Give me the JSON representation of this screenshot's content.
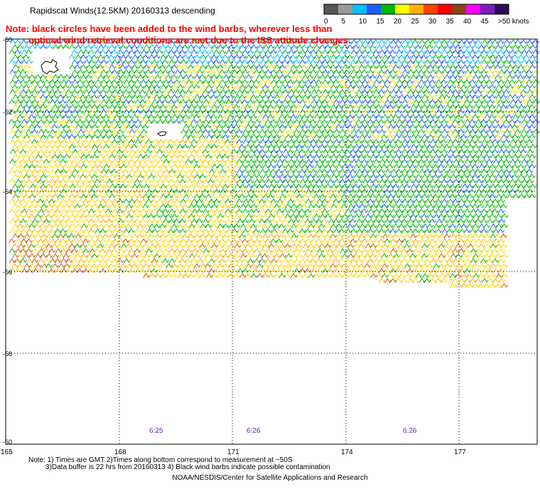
{
  "header": {
    "title": "Rapidscat Winds(12.5KM) 20160313 descending",
    "note_line1": "Note: black circles have been added to the wind barbs, wherever less than",
    "note_line2": "optimal wind retrieval conditions are met due to the ISS attitude changes."
  },
  "legend": {
    "labels": [
      "0",
      "5",
      "10",
      "15",
      "20",
      "25",
      "30",
      "35",
      "40",
      "45",
      ">50 knots"
    ],
    "colors": [
      "#555555",
      "#9a9a9a",
      "#00bfff",
      "#1e5cff",
      "#00b800",
      "#ffff00",
      "#ffb000",
      "#ff4000",
      "#ff0000",
      "#8b4513",
      "#ff00ff",
      "#7a1fbf",
      "#2b0a5a"
    ]
  },
  "map": {
    "lat_labels": [
      "-50",
      "-52",
      "-54",
      "-56",
      "-58",
      "-60"
    ],
    "lon_labels": [
      "165",
      "168",
      "171",
      "174",
      "177"
    ],
    "time_labels": [
      "6:25",
      "6:26",
      "6:26"
    ]
  },
  "footer": {
    "line1": "Note: 1) Times are GMT 2)Times along bottom correspond to measurement at ~50S",
    "line2": "3)Data buffer is 22 hrs from 20160313 4) Black wind barbs indicate possible contamination",
    "credit": "NOAA/NESDIS/Center for Satellite Applications and Research"
  }
}
